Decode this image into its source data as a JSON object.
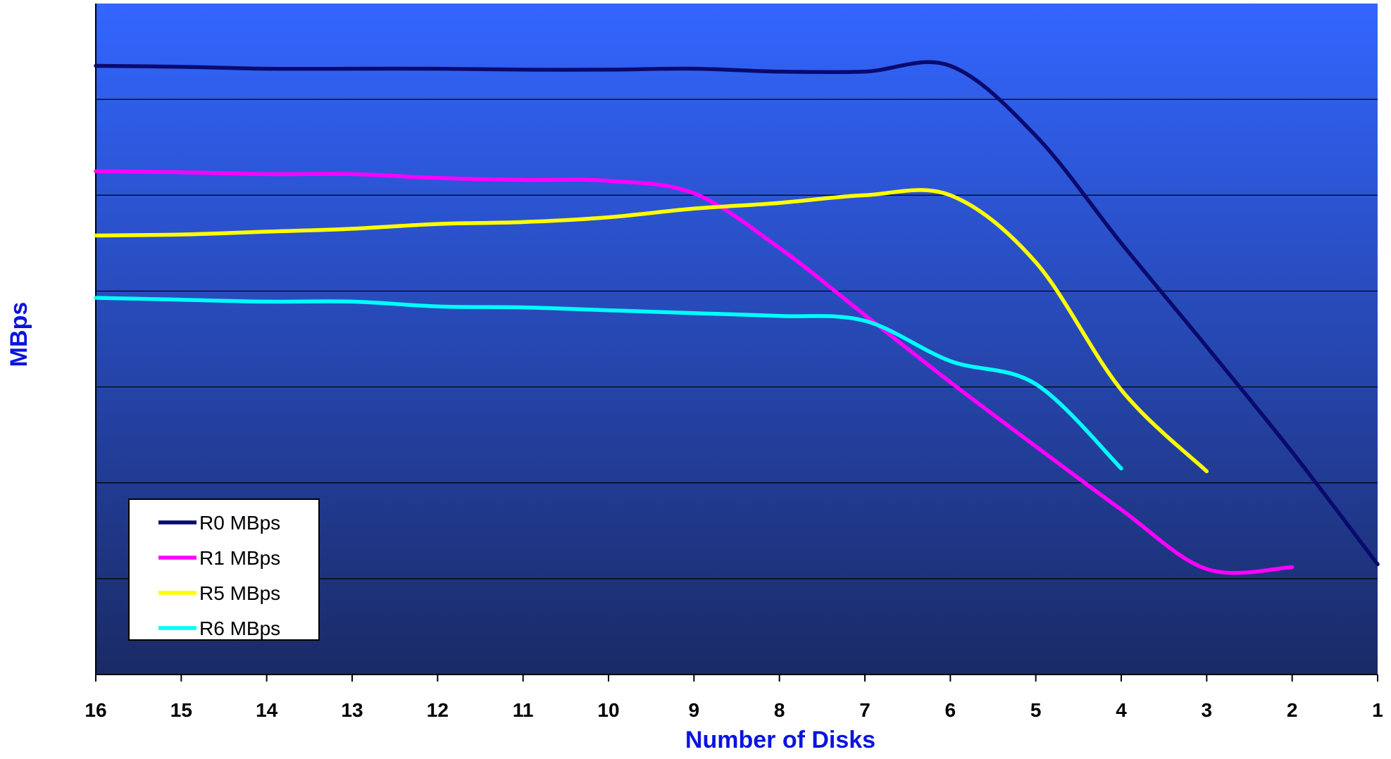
{
  "chart_data": {
    "type": "line",
    "title": "",
    "xlabel": "Number of Disks",
    "ylabel": "MBps",
    "x": [
      16,
      15,
      14,
      13,
      12,
      11,
      10,
      9,
      8,
      7,
      6,
      5,
      4,
      3,
      2,
      1
    ],
    "x_reversed": true,
    "ylim": [
      0,
      7
    ],
    "y_ticks_labeled": false,
    "grid": "horizontal",
    "legend_position": "bottom-left",
    "background": {
      "top": "#3366ff",
      "bottom": "#1a2a66"
    },
    "series": [
      {
        "name": "R0 MBps",
        "color": "#0a0a6e",
        "values": [
          6.35,
          6.34,
          6.32,
          6.32,
          6.32,
          6.31,
          6.31,
          6.32,
          6.29,
          6.29,
          6.35,
          5.62,
          4.5,
          3.42,
          2.32,
          1.15
        ]
      },
      {
        "name": "R1 MBps",
        "color": "#ff00ff",
        "values": [
          5.25,
          5.24,
          5.22,
          5.22,
          5.18,
          5.16,
          5.15,
          5.02,
          4.45,
          3.75,
          3.05,
          2.38,
          1.72,
          1.1,
          1.12,
          null
        ]
      },
      {
        "name": "R5 MBps",
        "color": "#ffff00",
        "values": [
          4.58,
          4.59,
          4.62,
          4.65,
          4.7,
          4.72,
          4.77,
          4.86,
          4.92,
          5.0,
          5.0,
          4.3,
          2.97,
          2.12,
          null,
          null
        ]
      },
      {
        "name": "R6 MBps",
        "color": "#00ffff",
        "values": [
          3.93,
          3.91,
          3.89,
          3.89,
          3.84,
          3.83,
          3.8,
          3.77,
          3.74,
          3.69,
          3.27,
          3.03,
          2.15,
          null,
          null,
          null
        ]
      }
    ]
  }
}
